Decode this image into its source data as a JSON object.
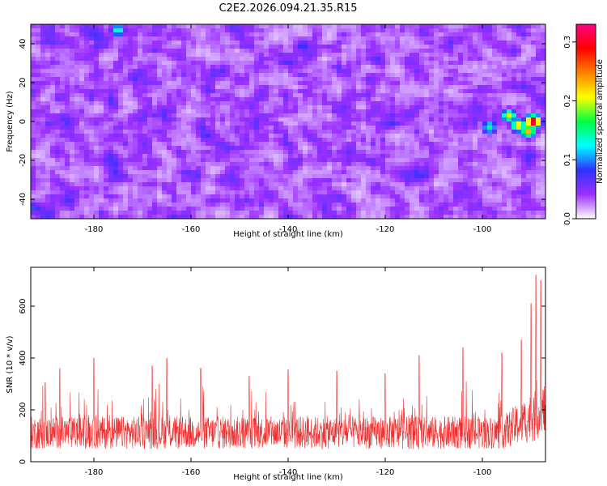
{
  "figure": {
    "title": "C2E2.2026.094.21.35.R15"
  },
  "chart_data": [
    {
      "type": "heatmap",
      "xlabel": "Height of straight line (km)",
      "ylabel": "Frequency (Hz)",
      "xlim": [
        -193,
        -87
      ],
      "ylim": [
        -50,
        50
      ],
      "x_ticks": [
        -180,
        -160,
        -140,
        -120,
        -100
      ],
      "y_ticks": [
        -40,
        -20,
        0,
        20,
        40
      ],
      "grid": false,
      "background_level": 0.03,
      "hotspots": [
        {
          "x": -89.5,
          "y": 0,
          "value": 0.33
        },
        {
          "x": -90.5,
          "y": -5,
          "value": 0.23
        },
        {
          "x": -92.5,
          "y": -2,
          "value": 0.22
        },
        {
          "x": -94.5,
          "y": 3,
          "value": 0.2
        },
        {
          "x": -98.5,
          "y": -3,
          "value": 0.15
        },
        {
          "x": -175,
          "y": 47,
          "value": 0.15
        }
      ],
      "colorbar": {
        "label": "Normalized spectral amplitude",
        "range": [
          0,
          0.33
        ],
        "ticks": [
          0.0,
          0.1,
          0.2,
          0.3
        ],
        "tick_labels": [
          "0.0",
          "0.1",
          "0.2",
          "0.3"
        ],
        "colormap": [
          "#ffffff",
          "#9b30ff",
          "#3030ff",
          "#00ffff",
          "#00ff40",
          "#ffff00",
          "#ff8000",
          "#ff0000",
          "#ff0080"
        ]
      }
    },
    {
      "type": "line",
      "xlabel": "Height of straight line (km)",
      "ylabel": "SNR (10 * v/v)",
      "xlim": [
        -193,
        -87
      ],
      "ylim": [
        0,
        750
      ],
      "x_ticks": [
        -180,
        -160,
        -140,
        -120,
        -100
      ],
      "y_ticks": [
        0,
        200,
        400,
        600
      ],
      "grid": false,
      "color": "#f03030",
      "series": [
        {
          "name": "",
          "baseline_mean": 140,
          "peaks": [
            {
              "x": -190,
              "y": 305
            },
            {
              "x": -187,
              "y": 360
            },
            {
              "x": -180,
              "y": 400
            },
            {
              "x": -168,
              "y": 370
            },
            {
              "x": -165,
              "y": 400
            },
            {
              "x": -158,
              "y": 360
            },
            {
              "x": -148,
              "y": 330
            },
            {
              "x": -140,
              "y": 355
            },
            {
              "x": -130,
              "y": 350
            },
            {
              "x": -120,
              "y": 340
            },
            {
              "x": -113,
              "y": 410
            },
            {
              "x": -104,
              "y": 440
            },
            {
              "x": -96,
              "y": 420
            },
            {
              "x": -92,
              "y": 470
            },
            {
              "x": -90,
              "y": 610
            },
            {
              "x": -89,
              "y": 720
            },
            {
              "x": -88,
              "y": 700
            }
          ]
        }
      ]
    }
  ]
}
